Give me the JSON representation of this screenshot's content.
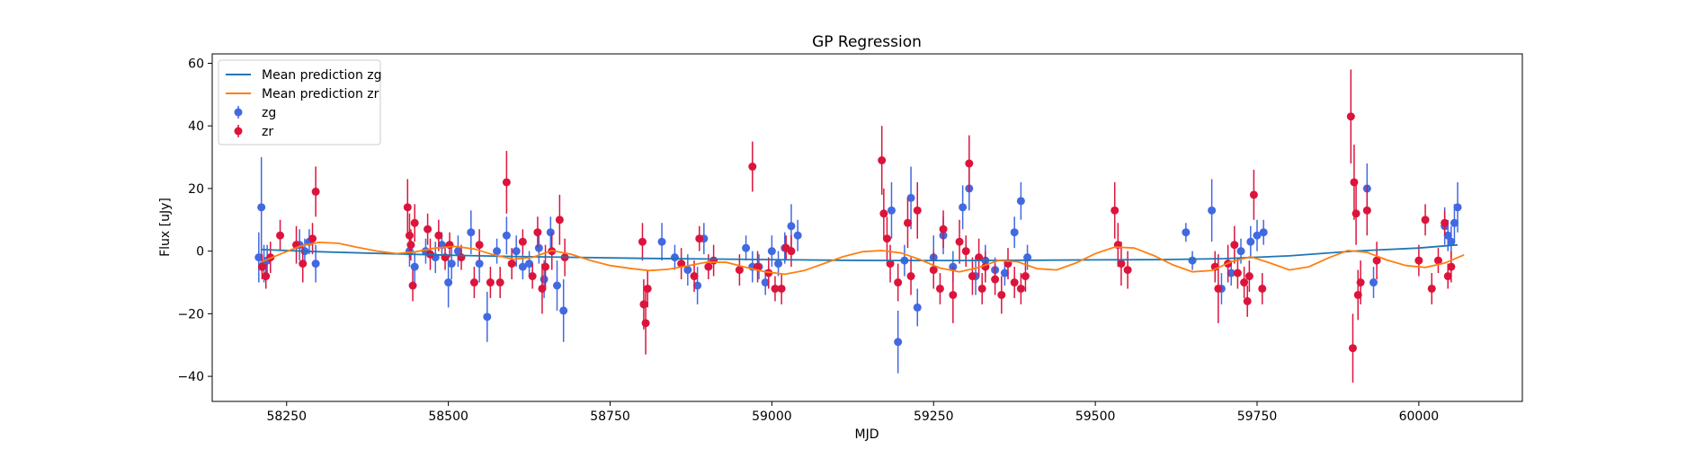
{
  "chart_data": {
    "type": "scatter",
    "title": "GP Regression",
    "xlabel": "MJD",
    "ylabel": "Flux [uJy]",
    "xlim": [
      58135,
      60160
    ],
    "ylim": [
      -48,
      63
    ],
    "x_ticks": [
      58250,
      58500,
      58750,
      59000,
      59250,
      59500,
      59750,
      60000
    ],
    "y_ticks": [
      -40,
      -20,
      0,
      20,
      40,
      60
    ],
    "grid": false,
    "legend_position": "top-left",
    "legend": [
      {
        "label": "Mean prediction zg",
        "kind": "line",
        "color": "#1f77b4"
      },
      {
        "label": "Mean prediction zr",
        "kind": "line",
        "color": "#ff7f0e"
      },
      {
        "label": "zg",
        "kind": "errorbar",
        "color": "#4169e1"
      },
      {
        "label": "zr",
        "kind": "errorbar",
        "color": "#dc143c"
      }
    ],
    "series": [
      {
        "name": "Mean prediction zg",
        "kind": "line",
        "color": "#1f77b4",
        "x": [
          58210,
          58300,
          58400,
          58500,
          58600,
          58700,
          58800,
          58900,
          59000,
          59100,
          59200,
          59300,
          59400,
          59500,
          59600,
          59700,
          59800,
          59900,
          60000,
          60060
        ],
        "y": [
          0.5,
          -0.2,
          -0.8,
          -1.3,
          -1.7,
          -2.0,
          -2.3,
          -2.5,
          -2.7,
          -2.9,
          -3.0,
          -3.0,
          -2.9,
          -2.8,
          -2.7,
          -2.4,
          -1.5,
          0.0,
          1.0,
          2.0
        ]
      },
      {
        "name": "Mean prediction zr",
        "kind": "line",
        "color": "#ff7f0e",
        "x": [
          58210,
          58240,
          58270,
          58300,
          58330,
          58360,
          58390,
          58420,
          58450,
          58480,
          58510,
          58540,
          58570,
          58600,
          58630,
          58660,
          58690,
          58720,
          58750,
          58780,
          58810,
          58840,
          58870,
          58900,
          58930,
          58960,
          58990,
          59020,
          59050,
          59080,
          59110,
          59140,
          59170,
          59200,
          59230,
          59260,
          59290,
          59320,
          59350,
          59380,
          59410,
          59440,
          59470,
          59500,
          59530,
          59560,
          59590,
          59620,
          59650,
          59680,
          59710,
          59740,
          59770,
          59800,
          59830,
          59860,
          59890,
          59920,
          59950,
          59980,
          60010,
          60040,
          60070
        ],
        "y": [
          -3.5,
          -1.0,
          1.5,
          2.8,
          2.5,
          1.2,
          0.0,
          -0.8,
          -0.2,
          1.0,
          1.5,
          0.7,
          -1.2,
          -2.6,
          -2.0,
          0.2,
          -1.0,
          -3.0,
          -4.6,
          -5.5,
          -6.2,
          -5.8,
          -4.7,
          -3.5,
          -3.6,
          -5.2,
          -6.6,
          -7.4,
          -6.2,
          -4.0,
          -1.8,
          -0.2,
          0.2,
          -0.6,
          -2.8,
          -5.4,
          -6.6,
          -5.2,
          -3.0,
          -3.4,
          -5.6,
          -6.0,
          -3.8,
          -0.8,
          1.3,
          1.0,
          -1.4,
          -4.4,
          -6.6,
          -6.2,
          -3.4,
          -1.8,
          -3.8,
          -6.0,
          -5.0,
          -2.2,
          0.2,
          -0.4,
          -2.8,
          -4.6,
          -5.2,
          -3.8,
          -1.2
        ]
      },
      {
        "name": "zg",
        "kind": "errorbar",
        "color": "#4169e1",
        "x": [
          58207,
          58211,
          58215,
          58220,
          58270,
          58278,
          58285,
          58295,
          58440,
          58448,
          58465,
          58480,
          58490,
          58500,
          58505,
          58515,
          58535,
          58548,
          58560,
          58575,
          58590,
          58605,
          58615,
          58625,
          58640,
          58648,
          58658,
          58668,
          58678,
          58830,
          58850,
          58870,
          58885,
          58895,
          58960,
          58970,
          58980,
          58990,
          59000,
          59010,
          59020,
          59030,
          59040,
          59185,
          59195,
          59205,
          59215,
          59225,
          59250,
          59265,
          59280,
          59295,
          59305,
          59315,
          59330,
          59345,
          59360,
          59375,
          59385,
          59395,
          59640,
          59650,
          59680,
          59695,
          59710,
          59725,
          59740,
          59750,
          59760,
          59920,
          59930,
          60040,
          60045,
          60050,
          60055,
          60060
        ],
        "y": [
          -2,
          14,
          -4,
          -3,
          2,
          0,
          3,
          -4,
          0,
          -5,
          0,
          -2,
          2,
          -10,
          -4,
          0,
          6,
          -4,
          -21,
          0,
          5,
          0,
          -5,
          -4,
          1,
          -9,
          6,
          -11,
          -19,
          3,
          -2,
          -6,
          -11,
          4,
          1,
          -5,
          -5,
          -10,
          0,
          -4,
          1,
          8,
          5,
          13,
          -29,
          -3,
          17,
          -18,
          -2,
          5,
          -5,
          14,
          20,
          -8,
          -3,
          -6,
          -7,
          6,
          16,
          -2,
          6,
          -3,
          13,
          -12,
          -7,
          0,
          3,
          5,
          6,
          20,
          -10,
          8,
          5,
          3,
          9,
          14
        ],
        "err": [
          8,
          16,
          6,
          5,
          5,
          4,
          4,
          6,
          5,
          5,
          4,
          5,
          4,
          8,
          5,
          5,
          7,
          6,
          8,
          4,
          6,
          5,
          4,
          4,
          5,
          6,
          5,
          8,
          10,
          6,
          4,
          5,
          6,
          5,
          4,
          5,
          4,
          4,
          5,
          4,
          5,
          7,
          5,
          9,
          10,
          5,
          10,
          6,
          7,
          6,
          5,
          7,
          7,
          6,
          5,
          4,
          4,
          5,
          6,
          4,
          3,
          3,
          10,
          5,
          4,
          4,
          5,
          5,
          4,
          8,
          5,
          6,
          5,
          5,
          6,
          8
        ]
      },
      {
        "name": "zr",
        "kind": "errorbar",
        "color": "#dc143c",
        "x": [
          58212,
          58218,
          58225,
          58240,
          58265,
          58275,
          58290,
          58295,
          58437,
          58440,
          58442,
          58445,
          58448,
          58468,
          58472,
          58485,
          58495,
          58502,
          58520,
          58540,
          58548,
          58565,
          58580,
          58590,
          58598,
          58615,
          58630,
          58638,
          58645,
          58650,
          58660,
          58672,
          58680,
          58800,
          58802,
          58805,
          58808,
          58860,
          58880,
          58888,
          58902,
          58910,
          58950,
          58970,
          58978,
          58995,
          59005,
          59015,
          59022,
          59030,
          59170,
          59173,
          59178,
          59183,
          59195,
          59210,
          59215,
          59225,
          59250,
          59260,
          59265,
          59280,
          59290,
          59300,
          59305,
          59310,
          59320,
          59325,
          59330,
          59345,
          59355,
          59365,
          59375,
          59385,
          59392,
          59530,
          59535,
          59540,
          59550,
          59685,
          59690,
          59705,
          59715,
          59720,
          59730,
          59735,
          59738,
          59745,
          59758,
          59895,
          59898,
          59900,
          59903,
          59906,
          59910,
          59920,
          59935,
          60000,
          60010,
          60020,
          60030,
          60040,
          60045,
          60050
        ],
        "y": [
          -5,
          -8,
          -2,
          5,
          2,
          -4,
          4,
          19,
          14,
          5,
          2,
          -11,
          9,
          7,
          -1,
          5,
          -2,
          2,
          -2,
          -10,
          2,
          -10,
          -10,
          22,
          -4,
          3,
          -8,
          6,
          -12,
          -5,
          0,
          10,
          -2,
          3,
          -17,
          -23,
          -12,
          -4,
          -8,
          4,
          -5,
          -3,
          -6,
          27,
          -5,
          -7,
          -12,
          -12,
          1,
          0,
          29,
          12,
          4,
          -4,
          -10,
          9,
          -8,
          13,
          -6,
          -12,
          7,
          -14,
          3,
          0,
          28,
          -8,
          -2,
          -12,
          -5,
          -9,
          -14,
          -4,
          -10,
          -12,
          -8,
          13,
          2,
          -4,
          -6,
          -5,
          -12,
          -4,
          2,
          -7,
          -10,
          -16,
          -8,
          18,
          -12,
          43,
          -31,
          22,
          12,
          -14,
          -10,
          13,
          -3,
          -3,
          10,
          -12,
          -3,
          9,
          -8,
          -5
        ],
        "err": [
          4,
          4,
          5,
          5,
          6,
          6,
          5,
          8,
          9,
          7,
          5,
          5,
          6,
          5,
          5,
          5,
          4,
          4,
          4,
          5,
          5,
          5,
          5,
          10,
          5,
          4,
          4,
          5,
          8,
          7,
          6,
          8,
          6,
          6,
          8,
          10,
          6,
          5,
          5,
          4,
          4,
          5,
          5,
          8,
          5,
          5,
          4,
          5,
          4,
          5,
          11,
          8,
          7,
          6,
          6,
          8,
          6,
          9,
          6,
          5,
          6,
          9,
          7,
          5,
          9,
          6,
          6,
          5,
          5,
          5,
          6,
          5,
          5,
          5,
          5,
          9,
          7,
          7,
          6,
          5,
          11,
          6,
          6,
          5,
          5,
          5,
          5,
          8,
          5,
          15,
          11,
          12,
          10,
          8,
          7,
          8,
          6,
          5,
          5,
          5,
          4,
          4,
          4,
          5
        ]
      }
    ]
  }
}
